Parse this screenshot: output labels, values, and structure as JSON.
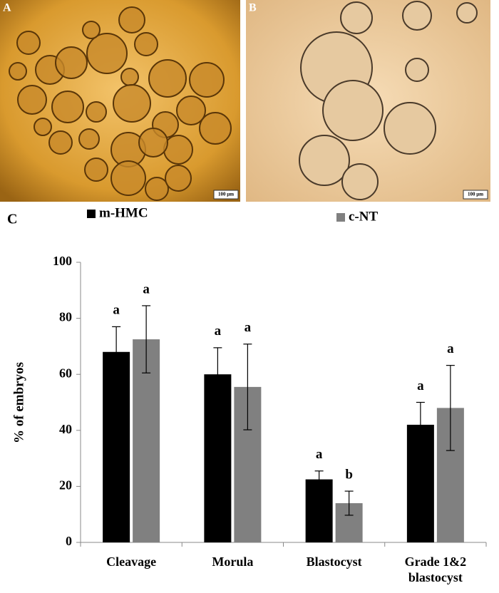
{
  "panels": {
    "a": {
      "label": "A",
      "scale_bar": "100 µm"
    },
    "b": {
      "label": "B",
      "scale_bar": "100 µm"
    },
    "c": {
      "label": "C"
    }
  },
  "chart_data": {
    "type": "bar",
    "categories": [
      "Cleavage",
      "Morula",
      "Blastocyst",
      "Grade 1&2 blastocyst"
    ],
    "series": [
      {
        "name": "m-HMC",
        "color": "#000000",
        "values": [
          68,
          60,
          22.5,
          42
        ],
        "errors": [
          9,
          9.5,
          3,
          8
        ],
        "letters": [
          "a",
          "a",
          "a",
          "a"
        ]
      },
      {
        "name": "c-NT",
        "color": "#808080",
        "values": [
          72.5,
          55.5,
          14,
          48
        ],
        "errors": [
          12,
          15.3,
          4.3,
          15.2
        ],
        "letters": [
          "a",
          "a",
          "b",
          "a"
        ]
      }
    ],
    "y_label": "% of embryos",
    "ylim": [
      0,
      100
    ],
    "yticks": [
      0,
      20,
      40,
      60,
      80,
      100
    ],
    "grid": false
  }
}
